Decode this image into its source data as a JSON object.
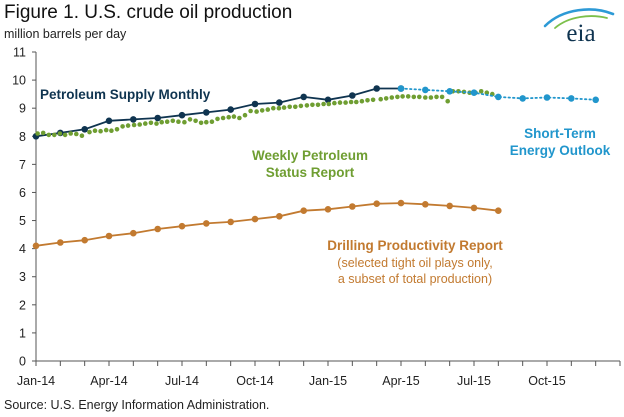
{
  "title": "Figure 1. U.S. crude oil production",
  "units": "million barrels per day",
  "source": "Source: U.S. Energy Information Administration.",
  "logo_text": "eia",
  "colors": {
    "psm": "#0f3450",
    "wpsr": "#6f9e32",
    "dpr": "#c27a30",
    "steo": "#2196cc",
    "axis": "#555555"
  },
  "chart_data": {
    "type": "line",
    "title": "Figure 1. U.S. crude oil production",
    "ylabel": "million barrels per day",
    "ylim": [
      0,
      11
    ],
    "yticks": [
      0,
      1,
      2,
      3,
      4,
      5,
      6,
      7,
      8,
      9,
      10,
      11
    ],
    "xlim": [
      "2014-01",
      "2015-12"
    ],
    "xticks": [
      "Jan-14",
      "Apr-14",
      "Jul-14",
      "Oct-14",
      "Jan-15",
      "Apr-15",
      "Jul-15",
      "Oct-15"
    ],
    "grid": false,
    "series": [
      {
        "name": "Petroleum Supply Monthly",
        "label_lines": [
          "Petroleum Supply Monthly"
        ],
        "color_key": "psm",
        "style": "solid-dots",
        "x": [
          "2014-01",
          "2014-02",
          "2014-03",
          "2014-04",
          "2014-05",
          "2014-06",
          "2014-07",
          "2014-08",
          "2014-09",
          "2014-10",
          "2014-11",
          "2014-12",
          "2015-01",
          "2015-02",
          "2015-03",
          "2015-04"
        ],
        "y": [
          8.0,
          8.12,
          8.25,
          8.55,
          8.6,
          8.65,
          8.75,
          8.85,
          8.95,
          9.15,
          9.2,
          9.4,
          9.3,
          9.45,
          9.7,
          9.7
        ]
      },
      {
        "name": "Weekly Petroleum Status Report",
        "label_lines": [
          "Weekly Petroleum",
          "Status Report"
        ],
        "color_key": "wpsr",
        "style": "dots",
        "x": [
          "2014-01-03",
          "2014-01-10",
          "2014-01-17",
          "2014-01-24",
          "2014-01-31",
          "2014-02-07",
          "2014-02-14",
          "2014-02-21",
          "2014-02-28",
          "2014-03-07",
          "2014-03-14",
          "2014-03-21",
          "2014-03-28",
          "2014-04-04",
          "2014-04-11",
          "2014-04-18",
          "2014-04-25",
          "2014-05-02",
          "2014-05-09",
          "2014-05-16",
          "2014-05-23",
          "2014-05-30",
          "2014-06-06",
          "2014-06-13",
          "2014-06-20",
          "2014-06-27",
          "2014-07-04",
          "2014-07-11",
          "2014-07-18",
          "2014-07-25",
          "2014-08-01",
          "2014-08-08",
          "2014-08-15",
          "2014-08-22",
          "2014-08-29",
          "2014-09-05",
          "2014-09-12",
          "2014-09-19",
          "2014-09-26",
          "2014-10-03",
          "2014-10-10",
          "2014-10-17",
          "2014-10-24",
          "2014-10-31",
          "2014-11-07",
          "2014-11-14",
          "2014-11-21",
          "2014-11-28",
          "2014-12-05",
          "2014-12-12",
          "2014-12-19",
          "2014-12-26",
          "2015-01-02",
          "2015-01-09",
          "2015-01-16",
          "2015-01-23",
          "2015-01-30",
          "2015-02-06",
          "2015-02-13",
          "2015-02-20",
          "2015-02-27",
          "2015-03-06",
          "2015-03-13",
          "2015-03-20",
          "2015-03-27",
          "2015-04-03",
          "2015-04-10",
          "2015-04-17",
          "2015-04-24",
          "2015-05-01",
          "2015-05-08",
          "2015-05-15",
          "2015-05-22",
          "2015-05-29",
          "2015-06-05",
          "2015-06-12",
          "2015-06-19",
          "2015-06-26",
          "2015-07-03",
          "2015-07-10",
          "2015-07-17",
          "2015-07-24"
        ],
        "y": [
          8.1,
          8.12,
          8.05,
          8.05,
          8.1,
          8.05,
          8.1,
          8.08,
          8.02,
          8.15,
          8.2,
          8.18,
          8.22,
          8.2,
          8.25,
          8.35,
          8.38,
          8.4,
          8.42,
          8.45,
          8.48,
          8.45,
          8.5,
          8.52,
          8.55,
          8.52,
          8.5,
          8.6,
          8.55,
          8.48,
          8.5,
          8.52,
          8.62,
          8.65,
          8.68,
          8.7,
          8.65,
          8.75,
          8.9,
          8.88,
          8.92,
          8.95,
          9.0,
          9.0,
          9.02,
          9.05,
          9.05,
          9.08,
          9.1,
          9.12,
          9.12,
          9.15,
          9.15,
          9.18,
          9.2,
          9.2,
          9.22,
          9.22,
          9.25,
          9.28,
          9.3,
          9.32,
          9.35,
          9.38,
          9.4,
          9.42,
          9.42,
          9.4,
          9.4,
          9.38,
          9.38,
          9.4,
          9.4,
          9.25,
          9.6,
          9.6,
          9.58,
          9.55,
          9.55,
          9.6,
          9.55,
          9.5
        ]
      },
      {
        "name": "Drilling Productivity Report",
        "label_lines": [
          "Drilling Productivity Report"
        ],
        "sublabel_lines": [
          "(selected tight oil plays only,",
          "a subset of total production)"
        ],
        "color_key": "dpr",
        "style": "solid-dots",
        "x": [
          "2014-01",
          "2014-02",
          "2014-03",
          "2014-04",
          "2014-05",
          "2014-06",
          "2014-07",
          "2014-08",
          "2014-09",
          "2014-10",
          "2014-11",
          "2014-12",
          "2015-01",
          "2015-02",
          "2015-03",
          "2015-04",
          "2015-05",
          "2015-06",
          "2015-07",
          "2015-08"
        ],
        "y": [
          4.1,
          4.22,
          4.3,
          4.45,
          4.55,
          4.7,
          4.8,
          4.9,
          4.95,
          5.05,
          5.15,
          5.35,
          5.4,
          5.5,
          5.6,
          5.62,
          5.58,
          5.52,
          5.45,
          5.35
        ]
      },
      {
        "name": "Short-Term Energy Outlook",
        "label_lines": [
          "Short-Term",
          "Energy Outlook"
        ],
        "color_key": "steo",
        "style": "dotted-dots",
        "x": [
          "2015-04",
          "2015-05",
          "2015-06",
          "2015-07",
          "2015-08",
          "2015-09",
          "2015-10",
          "2015-11",
          "2015-12"
        ],
        "y": [
          9.7,
          9.65,
          9.6,
          9.55,
          9.4,
          9.35,
          9.38,
          9.35,
          9.3
        ]
      }
    ]
  }
}
